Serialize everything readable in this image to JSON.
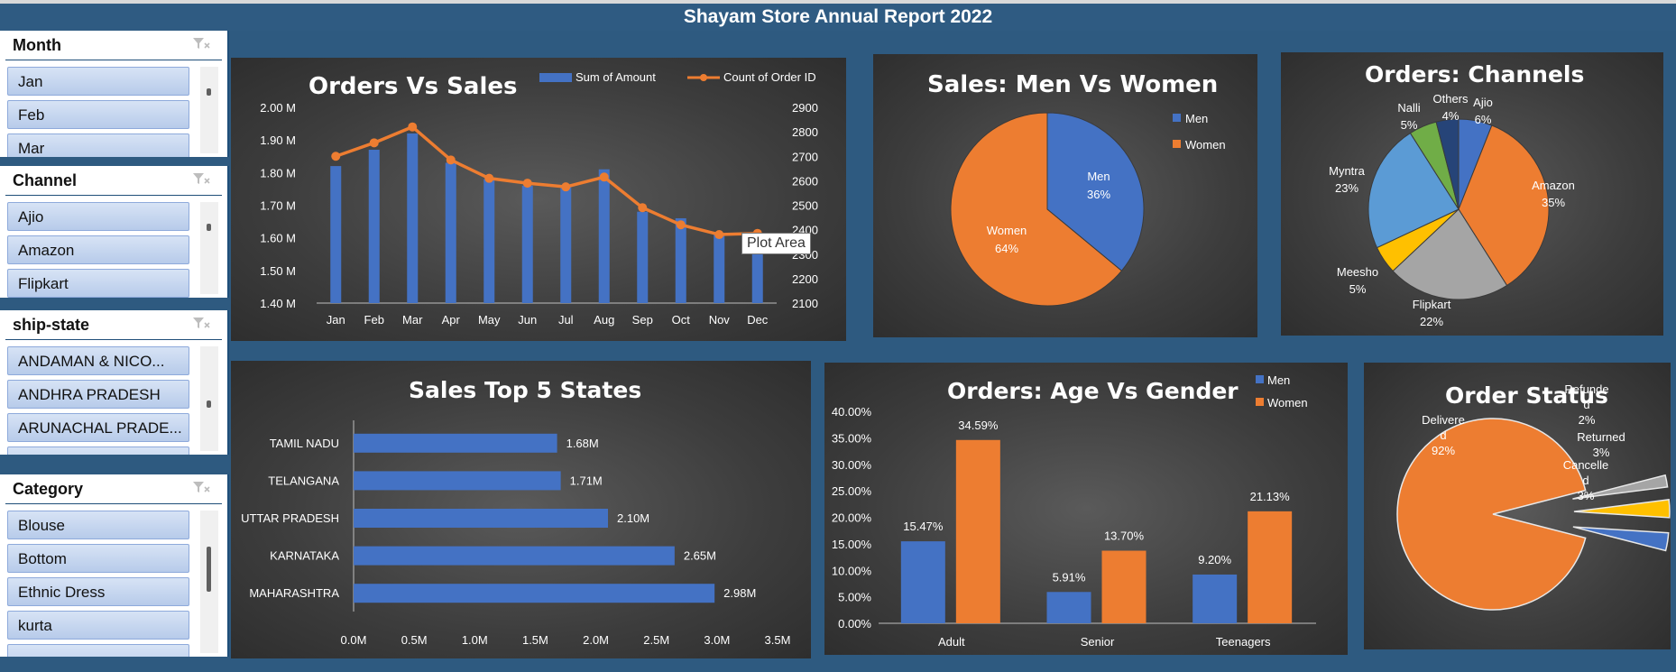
{
  "report_title": "Shayam Store Annual Report 2022",
  "colors": {
    "blue": "#4472c4",
    "orange": "#ed7d31",
    "gray": "#a5a5a5",
    "yellow": "#ffc000",
    "lightblue": "#5b9bd5",
    "green": "#70ad47",
    "navy": "#264478"
  },
  "slicers": [
    {
      "title": "Month",
      "items": [
        "Jan",
        "Feb",
        "Mar"
      ]
    },
    {
      "title": "Channel",
      "items": [
        "Ajio",
        "Amazon",
        "Flipkart"
      ]
    },
    {
      "title": "ship-state",
      "items": [
        "ANDAMAN & NICO...",
        "ANDHRA PRADESH",
        "ARUNACHAL PRADE...",
        ""
      ]
    },
    {
      "title": "Category",
      "items": [
        "Blouse",
        "Bottom",
        "Ethnic Dress",
        "kurta",
        ""
      ]
    }
  ],
  "tooltip": "Plot Area",
  "chart_data": [
    {
      "type": "bar",
      "title": "Orders Vs Sales",
      "categories": [
        "Jan",
        "Feb",
        "Mar",
        "Apr",
        "May",
        "Jun",
        "Jul",
        "Aug",
        "Sep",
        "Oct",
        "Nov",
        "Dec"
      ],
      "series": [
        {
          "name": "Sum of Amount",
          "type": "bar",
          "axis": "left",
          "values": [
            1.82,
            1.87,
            1.92,
            1.83,
            1.78,
            1.76,
            1.76,
            1.81,
            1.68,
            1.66,
            1.61,
            1.59
          ]
        },
        {
          "name": "Count of Order ID",
          "type": "line",
          "axis": "right",
          "values": [
            2700,
            2755,
            2820,
            2685,
            2610,
            2590,
            2575,
            2615,
            2490,
            2420,
            2380,
            2385
          ]
        }
      ],
      "ylim": [
        1.4,
        2.0
      ],
      "yticks": [
        "1.40 M",
        "1.50 M",
        "1.60 M",
        "1.70 M",
        "1.80 M",
        "1.90 M",
        "2.00 M"
      ],
      "y2lim": [
        2100,
        2900
      ],
      "y2ticks": [
        "2100",
        "2200",
        "2300",
        "2400",
        "2500",
        "2600",
        "2700",
        "2800",
        "2900"
      ],
      "legend": "top-right"
    },
    {
      "type": "pie",
      "title": "Sales: Men Vs Women",
      "labels": [
        "Men",
        "Women"
      ],
      "values": [
        36,
        64
      ],
      "display": [
        "36%",
        "64%"
      ],
      "legend": "right"
    },
    {
      "type": "pie",
      "title": "Orders: Channels",
      "labels": [
        "Ajio",
        "Amazon",
        "Flipkart",
        "Meesho",
        "Myntra",
        "Nalli",
        "Others"
      ],
      "values": [
        6,
        35,
        22,
        5,
        23,
        5,
        4
      ],
      "display": [
        "6%",
        "35%",
        "22%",
        "5%",
        "23%",
        "5%",
        "4%"
      ]
    },
    {
      "type": "bar",
      "orientation": "horizontal",
      "title": "Sales Top 5 States",
      "categories": [
        "TAMIL NADU",
        "TELANGANA",
        "UTTAR PRADESH",
        "KARNATAKA",
        "MAHARASHTRA"
      ],
      "values": [
        1.68,
        1.71,
        2.1,
        2.65,
        2.98
      ],
      "value_labels": [
        "1.68M",
        "1.71M",
        "2.10M",
        "2.65M",
        "2.98M"
      ],
      "xlim": [
        0,
        3.5
      ],
      "xticks": [
        "0.0M",
        "0.5M",
        "1.0M",
        "1.5M",
        "2.0M",
        "2.5M",
        "3.0M",
        "3.5M"
      ]
    },
    {
      "type": "bar",
      "title": "Orders: Age Vs Gender",
      "categories": [
        "Adult",
        "Senior",
        "Teenagers"
      ],
      "series": [
        {
          "name": "Men",
          "values": [
            15.47,
            5.91,
            9.2
          ],
          "labels": [
            "15.47%",
            "5.91%",
            "9.20%"
          ]
        },
        {
          "name": "Women",
          "values": [
            34.59,
            13.7,
            21.13
          ],
          "labels": [
            "34.59%",
            "13.70%",
            "21.13%"
          ]
        }
      ],
      "ylim": [
        0,
        40
      ],
      "yticks": [
        "0.00%",
        "5.00%",
        "10.00%",
        "15.00%",
        "20.00%",
        "25.00%",
        "30.00%",
        "35.00%",
        "40.00%"
      ],
      "legend": "top-right"
    },
    {
      "type": "pie",
      "title": "Order Status",
      "labels": [
        "Delivered",
        "Refunded",
        "Returned",
        "Cancelled"
      ],
      "label_lines": [
        [
          "Delivere",
          "d"
        ],
        [
          "Refunde",
          "d"
        ],
        [
          "Returned"
        ],
        [
          "Cancelle",
          "d"
        ]
      ],
      "values": [
        92,
        2,
        3,
        3
      ],
      "display": [
        "92%",
        "2%",
        "3%",
        "3%"
      ]
    }
  ]
}
